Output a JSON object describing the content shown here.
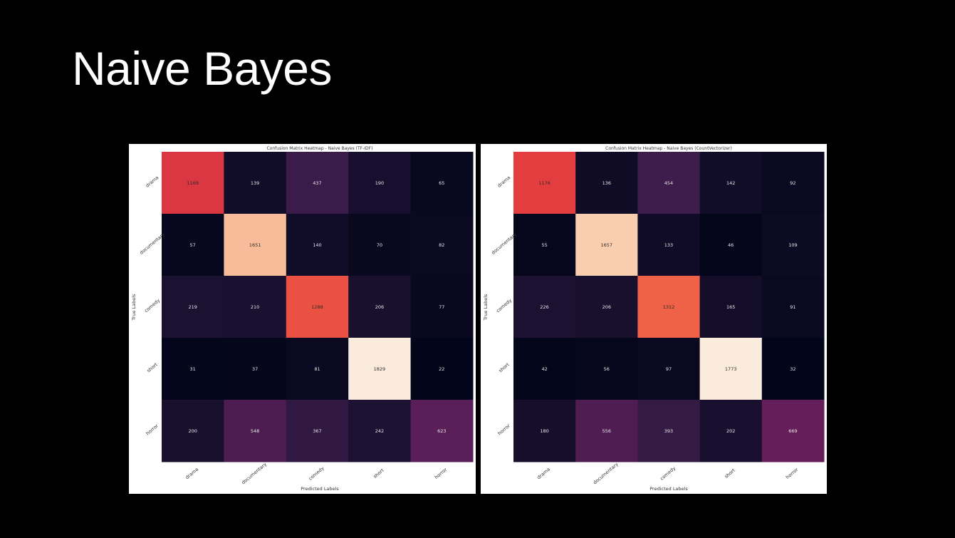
{
  "slide": {
    "title": "Naive Bayes"
  },
  "chart_data": [
    {
      "type": "heatmap",
      "title": "Confusion Matrix Heatmap - Naive Bayes (TF-IDF)",
      "xlabel": "Predicted Labels",
      "ylabel": "True Labels",
      "x_categories": [
        "drama",
        "documentary",
        "comedy",
        "short",
        "horror"
      ],
      "y_categories": [
        "drama",
        "documentary",
        "comedy",
        "short",
        "horror"
      ],
      "values": [
        [
          1169,
          139,
          437,
          190,
          65
        ],
        [
          57,
          1651,
          140,
          70,
          82
        ],
        [
          219,
          210,
          1288,
          206,
          77
        ],
        [
          31,
          37,
          81,
          1829,
          22
        ],
        [
          200,
          548,
          367,
          242,
          623
        ]
      ],
      "colormap": "rocket"
    },
    {
      "type": "heatmap",
      "title": "Confusion Matrix Heatmap - Naive Bayes (CountVectorizer)",
      "xlabel": "Predicted Labels",
      "ylabel": "True Labels",
      "x_categories": [
        "drama",
        "documentary",
        "comedy",
        "short",
        "horror"
      ],
      "y_categories": [
        "drama",
        "documentary",
        "comedy",
        "short",
        "horror"
      ],
      "values": [
        [
          1176,
          136,
          454,
          142,
          92
        ],
        [
          55,
          1657,
          133,
          46,
          109
        ],
        [
          226,
          206,
          1312,
          165,
          91
        ],
        [
          42,
          56,
          97,
          1773,
          32
        ],
        [
          180,
          556,
          393,
          202,
          669
        ]
      ],
      "colormap": "rocket"
    }
  ]
}
